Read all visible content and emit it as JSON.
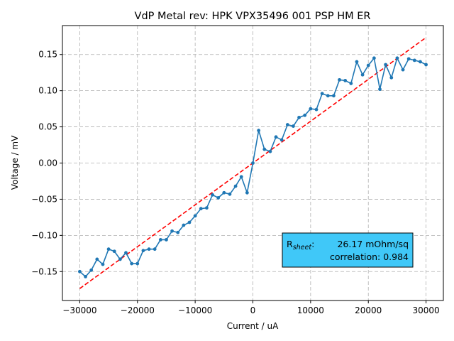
{
  "chart_data": {
    "type": "line",
    "title": "VdP Metal rev: HPK VPX35496 001 PSP HM ER",
    "xlabel": "Current / uA",
    "ylabel": "Voltage / mV",
    "xlim": [
      -33000,
      33000
    ],
    "ylim": [
      -0.19,
      0.19
    ],
    "x_ticks": [
      -30000,
      -20000,
      -10000,
      0,
      10000,
      20000,
      30000
    ],
    "x_tick_labels": [
      "−30000",
      "−20000",
      "−10000",
      "0",
      "10000",
      "20000",
      "30000"
    ],
    "y_ticks": [
      -0.15,
      -0.1,
      -0.05,
      0.0,
      0.05,
      0.1,
      0.15
    ],
    "y_tick_labels": [
      "−0.15",
      "−0.10",
      "−0.05",
      "0.00",
      "0.05",
      "0.10",
      "0.15"
    ],
    "grid": true,
    "series": [
      {
        "kind": "measured",
        "color": "#1f77b4",
        "marker": "dot",
        "x": [
          -30000,
          -29000,
          -28000,
          -27000,
          -26000,
          -25000,
          -24000,
          -23000,
          -22000,
          -21000,
          -20000,
          -19000,
          -18000,
          -17000,
          -16000,
          -15000,
          -14000,
          -13000,
          -12000,
          -11000,
          -10000,
          -9000,
          -8000,
          -7000,
          -6000,
          -5000,
          -4000,
          -3000,
          -2000,
          -1000,
          0,
          1000,
          2000,
          3000,
          4000,
          5000,
          6000,
          7000,
          8000,
          9000,
          10000,
          11000,
          12000,
          13000,
          14000,
          15000,
          16000,
          17000,
          18000,
          19000,
          20000,
          21000,
          22000,
          23000,
          24000,
          25000,
          26000,
          27000,
          28000,
          29000,
          30000
        ],
        "y": [
          -0.15,
          -0.157,
          -0.148,
          -0.133,
          -0.14,
          -0.119,
          -0.122,
          -0.133,
          -0.124,
          -0.139,
          -0.139,
          -0.121,
          -0.119,
          -0.119,
          -0.106,
          -0.106,
          -0.094,
          -0.096,
          -0.086,
          -0.082,
          -0.073,
          -0.063,
          -0.062,
          -0.044,
          -0.048,
          -0.041,
          -0.043,
          -0.032,
          -0.019,
          -0.041,
          0.0,
          0.045,
          0.019,
          0.016,
          0.036,
          0.032,
          0.053,
          0.051,
          0.063,
          0.066,
          0.075,
          0.074,
          0.096,
          0.093,
          0.093,
          0.115,
          0.114,
          0.11,
          0.14,
          0.122,
          0.135,
          0.145,
          0.102,
          0.136,
          0.118,
          0.145,
          0.129,
          0.144,
          0.142,
          0.14,
          0.136
        ]
      },
      {
        "kind": "fit",
        "color": "#ff0000",
        "dash": "dashed",
        "x": [
          -30000,
          30000
        ],
        "y": [
          -0.1735,
          0.1735
        ]
      }
    ],
    "annotation": {
      "rsheet_prefix": "R",
      "rsheet_sub": "sheet",
      "rsheet_suffix": ":",
      "rsheet_value": "26.17 mOhm/sq",
      "correlation_text": "correlation: 0.984",
      "bg_color": "#40c8f8"
    }
  }
}
